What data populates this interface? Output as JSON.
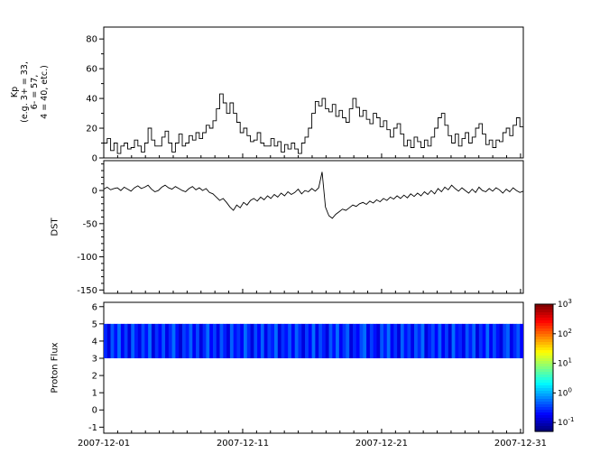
{
  "figure": {
    "background": "#ffffff",
    "line_color": "#000000",
    "kp_axis_label_lines": [
      "Kp",
      "(e.g. 3+ = 33,",
      "6- = 57,",
      "4 = 40, etc.)"
    ],
    "dst_axis_label": "DST",
    "flux_axis_label": "Proton Flux"
  },
  "x_axis": {
    "range_days": [
      0,
      30.2
    ],
    "tick_days": [
      0,
      10,
      20,
      30
    ],
    "tick_labels": [
      "2007-12-01",
      "2007-12-11",
      "2007-12-21",
      "2007-12-31"
    ],
    "minor_step_days": 1
  },
  "colorbar": {
    "base": "10",
    "tick_exponents": [
      "3",
      "2",
      "1",
      "0",
      "-1"
    ],
    "tick_values": [
      3,
      2,
      1,
      0,
      -1
    ],
    "log_range": [
      -1.3,
      3
    ],
    "colormap": "jet"
  },
  "chart_data": [
    {
      "name": "kp",
      "type": "line",
      "line_style": "step",
      "title": "",
      "xlabel": "",
      "ylabel": "Kp (e.g. 3+ = 33, 6- = 57, 4 = 40, etc.)",
      "ylim": [
        0,
        88
      ],
      "yticks": [
        0,
        20,
        40,
        60,
        80
      ],
      "yminor": 10,
      "x0": 0,
      "dx": 0.245528,
      "x_units": "days since 2007-12-01",
      "values": [
        10,
        13,
        5,
        10,
        3,
        8,
        10,
        6,
        7,
        12,
        8,
        4,
        10,
        20,
        12,
        8,
        8,
        14,
        18,
        10,
        4,
        10,
        16,
        8,
        10,
        15,
        12,
        17,
        13,
        17,
        22,
        20,
        25,
        33,
        43,
        37,
        30,
        37,
        30,
        24,
        17,
        20,
        15,
        11,
        12,
        17,
        10,
        8,
        8,
        13,
        8,
        11,
        4,
        9,
        6,
        10,
        6,
        3,
        10,
        14,
        20,
        30,
        38,
        35,
        40,
        33,
        31,
        36,
        28,
        32,
        27,
        24,
        33,
        40,
        34,
        28,
        32,
        26,
        23,
        30,
        27,
        21,
        25,
        19,
        14,
        20,
        23,
        16,
        8,
        12,
        7,
        14,
        11,
        7,
        12,
        8,
        14,
        20,
        27,
        30,
        22,
        15,
        10,
        16,
        8,
        13,
        17,
        10,
        14,
        20,
        23,
        16,
        9,
        12,
        7,
        12,
        11,
        17,
        20,
        15,
        22,
        27,
        21,
        27
      ]
    },
    {
      "name": "dst",
      "type": "line",
      "line_style": "linear",
      "title": "",
      "xlabel": "",
      "ylabel": "DST",
      "ylim": [
        -155,
        45
      ],
      "yticks": [
        0,
        -50,
        -100,
        -150
      ],
      "yminor": 10,
      "x0": 0,
      "dx": 0.245528,
      "x_units": "days since 2007-12-01",
      "values": [
        2,
        5,
        1,
        3,
        4,
        0,
        5,
        2,
        -1,
        4,
        7,
        3,
        5,
        8,
        2,
        -2,
        0,
        5,
        8,
        4,
        2,
        6,
        3,
        0,
        -2,
        3,
        6,
        1,
        4,
        0,
        3,
        -3,
        -5,
        -10,
        -15,
        -12,
        -18,
        -25,
        -30,
        -22,
        -26,
        -18,
        -22,
        -15,
        -12,
        -16,
        -10,
        -14,
        -8,
        -12,
        -6,
        -10,
        -4,
        -8,
        -2,
        -6,
        -3,
        2,
        -5,
        0,
        -2,
        3,
        -1,
        4,
        28,
        -25,
        -38,
        -42,
        -36,
        -32,
        -28,
        -30,
        -26,
        -22,
        -24,
        -20,
        -18,
        -21,
        -16,
        -19,
        -14,
        -17,
        -12,
        -15,
        -10,
        -13,
        -8,
        -12,
        -7,
        -11,
        -5,
        -9,
        -4,
        -8,
        -2,
        -6,
        0,
        -5,
        3,
        -2,
        5,
        1,
        8,
        3,
        -1,
        4,
        0,
        -4,
        2,
        -3,
        5,
        0,
        -2,
        3,
        -1,
        4,
        1,
        -4,
        2,
        -2,
        4,
        0,
        -3,
        -1
      ]
    },
    {
      "name": "flux",
      "type": "heatmap",
      "title": "",
      "xlabel": "",
      "ylabel": "Proton Flux",
      "ylim": [
        -1.35,
        6.25
      ],
      "yticks": [
        -1,
        0,
        1,
        2,
        3,
        4,
        5,
        6
      ],
      "yminor": null,
      "band_y": [
        3,
        5
      ],
      "colormap": "jet",
      "x0": 0,
      "dx": 0.245528,
      "x_units": "days since 2007-12-01",
      "values_log10": [
        -0.6,
        -0.9,
        -0.4,
        -0.7,
        -0.3,
        -0.8,
        -0.5,
        -0.9,
        -0.35,
        -0.65,
        -0.85,
        -0.45,
        -0.7,
        -0.3,
        -0.9,
        -0.55,
        -0.75,
        -0.4,
        -0.85,
        -0.6,
        -0.3,
        -0.7,
        -0.95,
        -0.5,
        -0.65,
        -0.35,
        -0.8,
        -0.45,
        -0.9,
        -0.6,
        -0.3,
        -0.75,
        -0.5,
        -0.85,
        -0.4,
        -0.65,
        -0.9,
        -0.35,
        -0.7,
        -0.55,
        -0.8,
        -0.3,
        -0.6,
        -0.9,
        -0.45,
        -0.75,
        -0.35,
        -0.85,
        -0.5,
        -0.65,
        -0.3,
        -0.9,
        -0.55,
        -0.7,
        -0.4,
        -0.8,
        -0.35,
        -0.6,
        -0.9,
        -0.5,
        -0.75,
        -0.3,
        -0.85,
        -0.45,
        -0.65,
        -0.9,
        -0.4,
        -0.7,
        -0.3,
        -0.8,
        -0.55,
        -0.35,
        -0.9,
        -0.6,
        -0.75,
        -0.45,
        -0.3,
        -0.85,
        -0.5,
        -0.7,
        -0.9,
        -0.4,
        -0.65,
        -0.3,
        -0.8,
        -0.55,
        -0.9,
        -0.35,
        -0.7,
        -0.5,
        -0.85,
        -0.4,
        -0.6,
        -0.3,
        -0.9,
        -0.65,
        -0.45,
        -0.75,
        -0.35,
        -0.8,
        -0.5,
        -0.9,
        -0.3,
        -0.7,
        -0.6,
        -0.85,
        -0.4,
        -0.65,
        -0.35,
        -0.9,
        -0.55,
        -0.75,
        -0.3,
        -0.8,
        -0.45,
        -0.7,
        -0.9,
        -0.5,
        -0.35,
        -0.85,
        -0.6,
        -0.4,
        -0.75,
        -0.3
      ]
    }
  ]
}
